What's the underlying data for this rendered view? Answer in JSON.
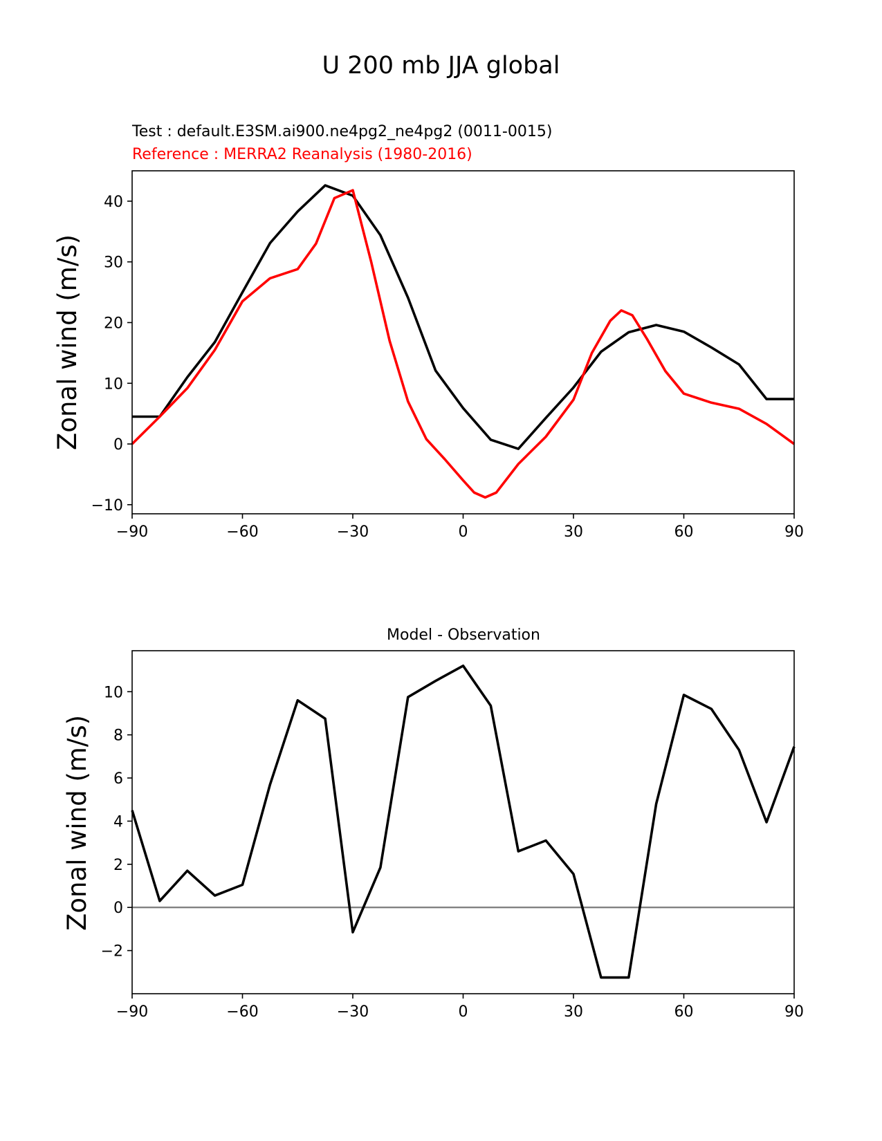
{
  "figure": {
    "suptitle": "U 200 mb JJA global"
  },
  "chart_data": [
    {
      "type": "line",
      "test_label": "Test : default.E3SM.ai900.ne4pg2_ne4pg2 (0011-0015)",
      "ref_label": "Reference : MERRA2 Reanalysis (1980-2016)",
      "xlabel": "",
      "ylabel": "Zonal wind (m/s)",
      "xlim": [
        -90,
        90
      ],
      "ylim": [
        -11.5,
        45
      ],
      "xticks": [
        -90,
        -60,
        -30,
        0,
        30,
        60,
        90
      ],
      "xtick_labels": [
        "−90",
        "−60",
        "−30",
        "0",
        "30",
        "60",
        "90"
      ],
      "yticks": [
        -10,
        0,
        10,
        20,
        30,
        40
      ],
      "ytick_labels": [
        "−10",
        "0",
        "10",
        "20",
        "30",
        "40"
      ],
      "series": [
        {
          "name": "Test",
          "color": "#000000",
          "x": [
            -90,
            -82.5,
            -75,
            -67.5,
            -60,
            -52.5,
            -45,
            -37.5,
            -30,
            -22.5,
            -15,
            -7.5,
            0,
            7.5,
            15,
            22.5,
            30,
            37.5,
            45,
            52.5,
            60,
            67.5,
            75,
            82.5,
            90
          ],
          "y": [
            4.5,
            4.5,
            11.0,
            16.8,
            25.0,
            33.1,
            38.3,
            42.6,
            40.9,
            34.4,
            24.1,
            12.1,
            5.9,
            0.7,
            -0.8,
            4.3,
            9.3,
            15.2,
            18.4,
            19.6,
            18.5,
            15.9,
            13.1,
            7.4,
            7.4
          ]
        },
        {
          "name": "Reference",
          "color": "#ff0000",
          "x": [
            -90,
            -82.5,
            -75,
            -67.5,
            -60,
            -52.5,
            -45,
            -40,
            -35,
            -30,
            -25,
            -20,
            -15,
            -10,
            -5,
            0,
            3,
            6,
            9,
            15,
            22.5,
            30,
            35,
            40,
            43,
            46,
            50,
            55,
            60,
            67.5,
            75,
            82.5,
            90
          ],
          "y": [
            0,
            4.5,
            9.2,
            15.5,
            23.5,
            27.3,
            28.8,
            33.0,
            40.5,
            41.8,
            30.0,
            17.0,
            7.0,
            0.8,
            -2.5,
            -6.0,
            -8.0,
            -8.8,
            -8.0,
            -3.3,
            1.2,
            7.3,
            15.0,
            20.3,
            22.0,
            21.2,
            17.3,
            12.0,
            8.3,
            6.8,
            5.8,
            3.3,
            0
          ]
        }
      ]
    },
    {
      "type": "line",
      "title": "Model - Observation",
      "xlabel": "",
      "ylabel": "Zonal wind (m/s)",
      "xlim": [
        -90,
        90
      ],
      "ylim": [
        -4,
        11.9
      ],
      "xticks": [
        -90,
        -60,
        -30,
        0,
        30,
        60,
        90
      ],
      "xtick_labels": [
        "−90",
        "−60",
        "−30",
        "0",
        "30",
        "60",
        "90"
      ],
      "yticks": [
        -2,
        0,
        2,
        4,
        6,
        8,
        10
      ],
      "ytick_labels": [
        "−2",
        "0",
        "2",
        "4",
        "6",
        "8",
        "10"
      ],
      "zero_line_color": "#808080",
      "series": [
        {
          "name": "Model - Observation",
          "color": "#000000",
          "x": [
            -90,
            -82.5,
            -75,
            -67.5,
            -60,
            -52.5,
            -45,
            -37.5,
            -30,
            -22.5,
            -15,
            -7.5,
            0,
            7.5,
            15,
            22.5,
            30,
            37.5,
            45,
            52.5,
            60,
            67.5,
            75,
            82.5,
            90
          ],
          "y": [
            4.5,
            0.3,
            1.7,
            0.55,
            1.05,
            5.7,
            9.6,
            8.75,
            -1.15,
            1.85,
            9.75,
            10.5,
            11.2,
            9.35,
            2.6,
            3.1,
            1.55,
            -3.25,
            -3.25,
            4.8,
            9.85,
            9.2,
            7.3,
            3.95,
            7.45
          ]
        }
      ]
    }
  ]
}
